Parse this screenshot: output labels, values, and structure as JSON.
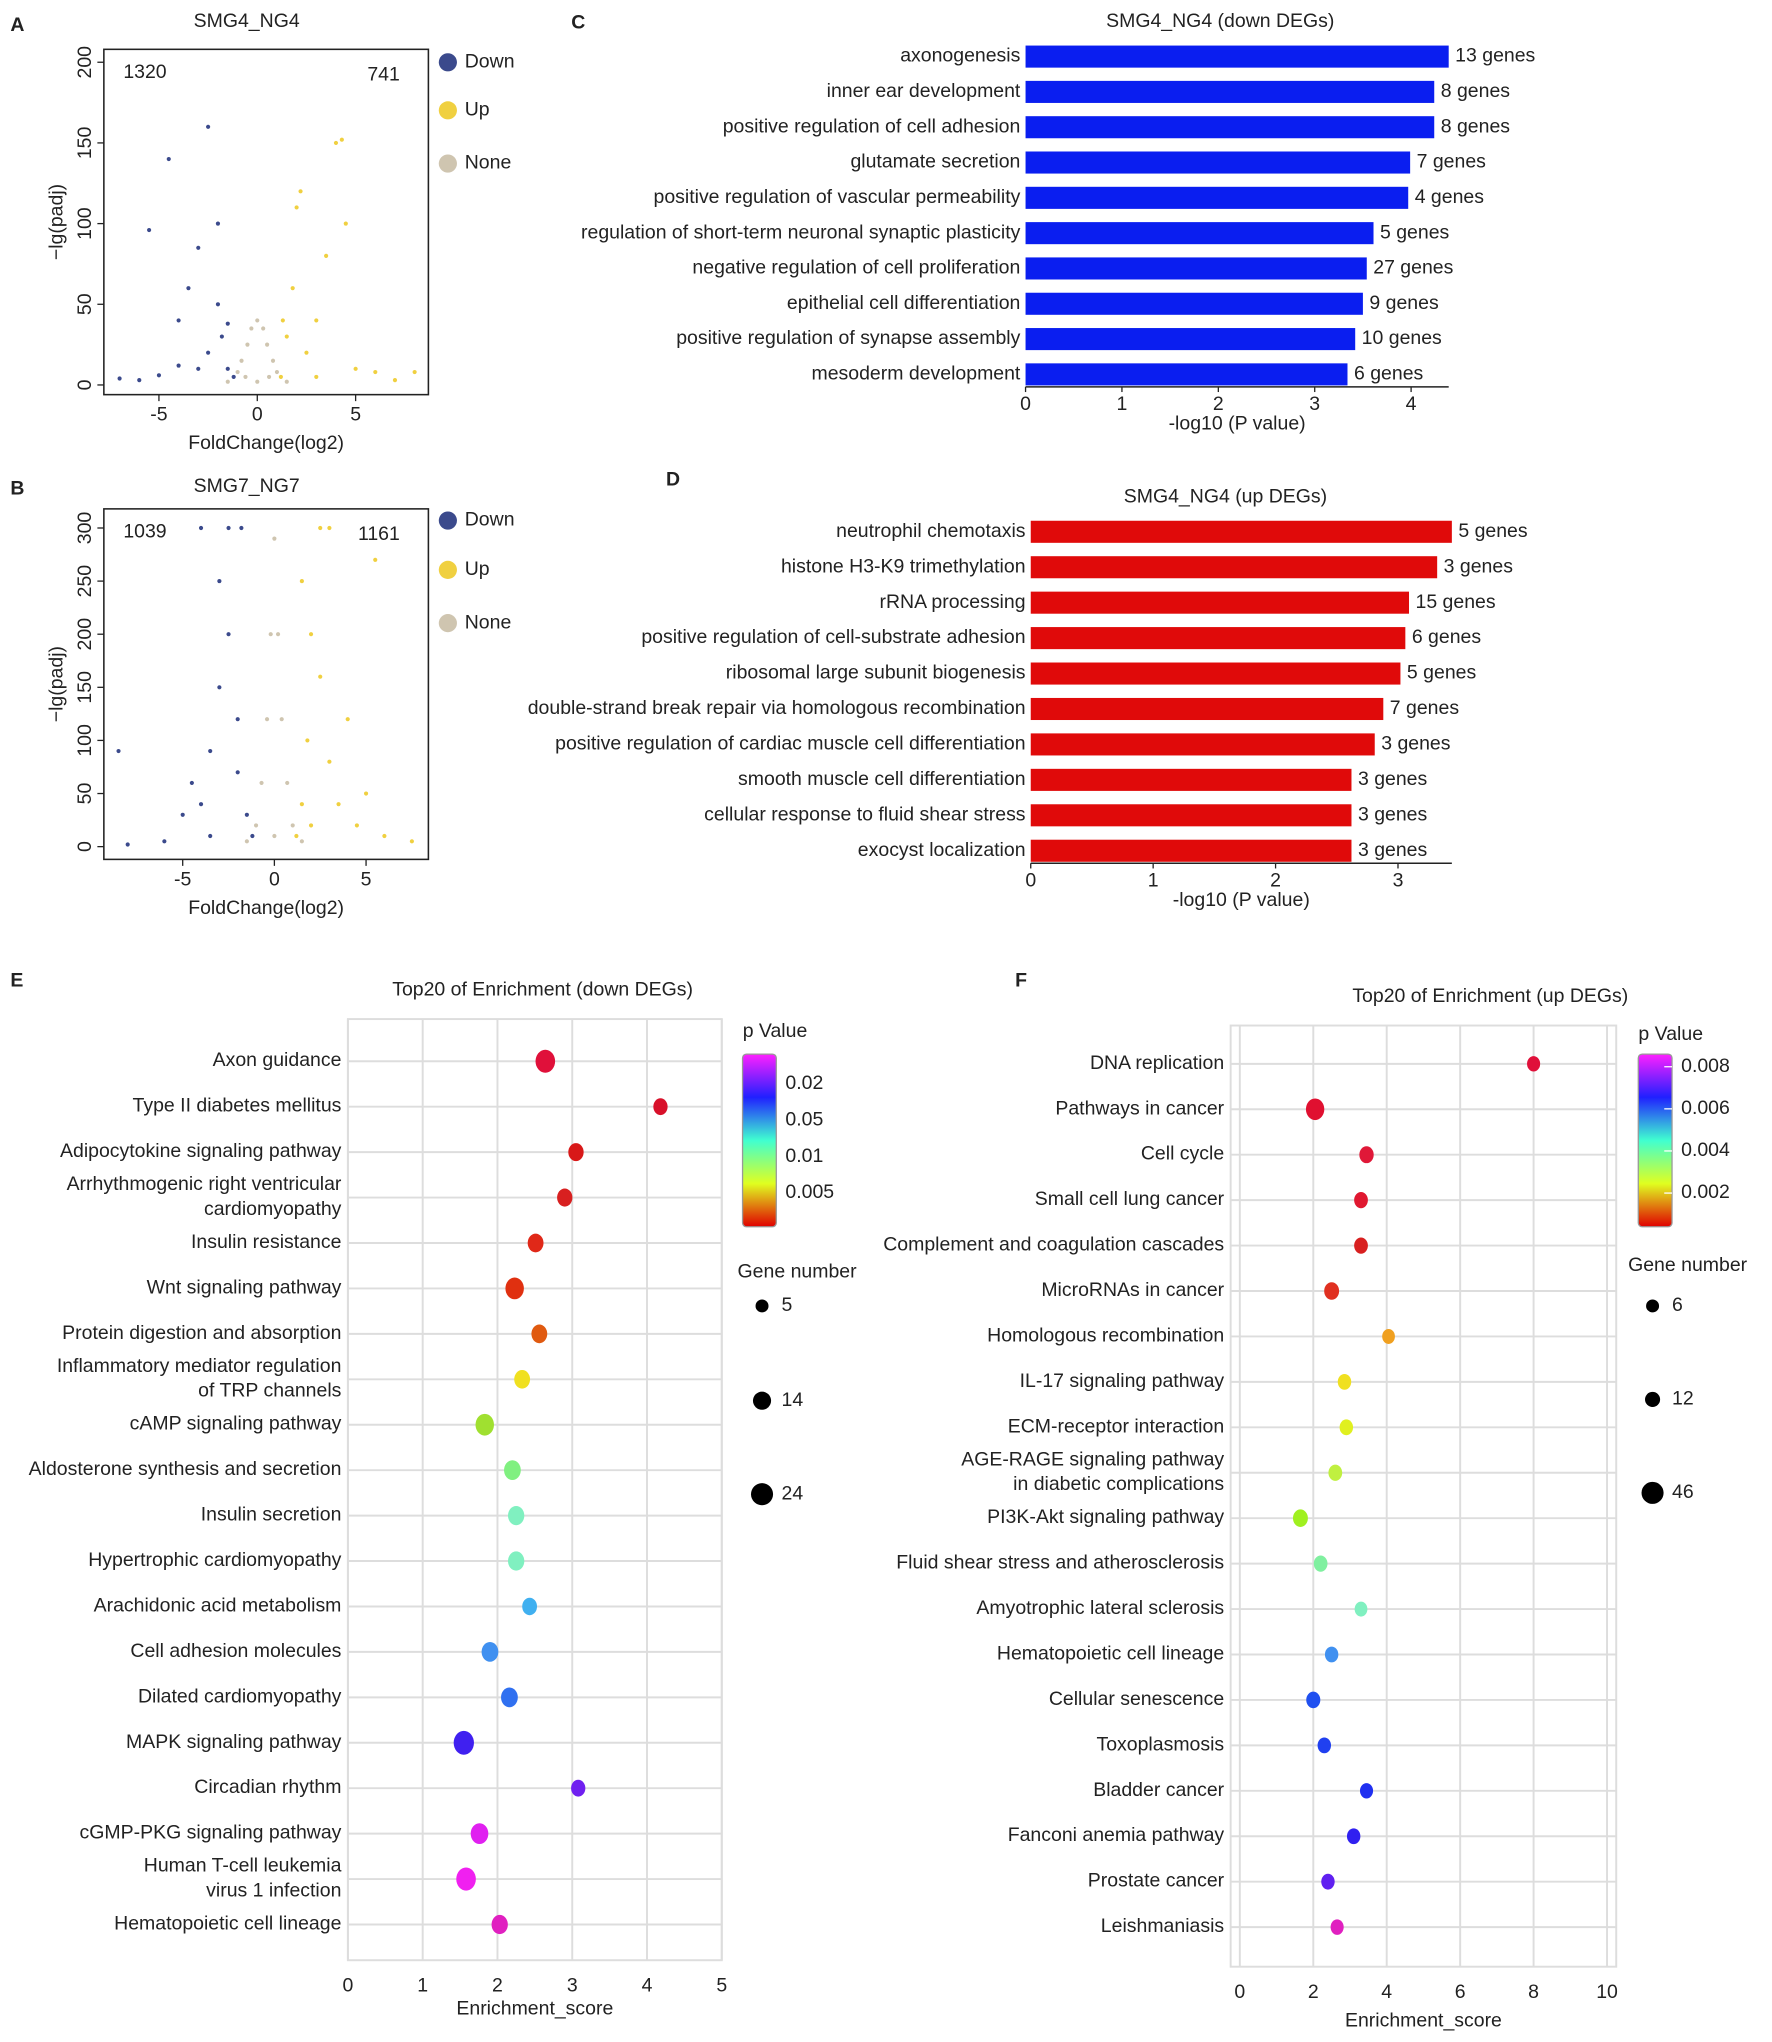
{
  "chart_data": [
    {
      "type": "scatter",
      "panel": "A",
      "title": "SMG4_NG4",
      "x_label": "FoldChange(log2)",
      "y_label": "−lg(padj)",
      "annotations": [
        "1320",
        "741"
      ],
      "xlim": [
        -7.8,
        8.7
      ],
      "ylim": [
        -6,
        208
      ],
      "xticks": [
        -5,
        0,
        5
      ],
      "yticks": [
        0,
        50,
        100,
        150,
        200
      ],
      "series": [
        {
          "name": "Down",
          "color": "#3b4a8c",
          "x": [
            -7,
            -6,
            -5.5,
            -4.5,
            -4,
            -3.5,
            -3,
            -2.5,
            -2.5,
            -2,
            -1.8,
            -1.5,
            -1.2,
            -3,
            -2,
            -1.5,
            -4,
            -5
          ],
          "y": [
            4,
            3,
            96,
            140,
            40,
            60,
            85,
            160,
            20,
            50,
            30,
            10,
            5,
            10,
            100,
            38,
            12,
            6
          ]
        },
        {
          "name": "Up",
          "color": "#f0d040",
          "x": [
            1.2,
            1.5,
            1.8,
            2,
            2.5,
            3,
            3.5,
            4,
            4.3,
            4.5,
            5,
            6,
            7,
            2.2,
            1.3,
            3,
            8
          ],
          "y": [
            5,
            30,
            60,
            110,
            20,
            40,
            80,
            150,
            152,
            100,
            10,
            8,
            3,
            120,
            40,
            5,
            8
          ]
        },
        {
          "name": "None",
          "color": "#cfc5b0",
          "x": [
            -1.5,
            -1,
            -0.8,
            -0.5,
            -0.3,
            0,
            0.3,
            0.5,
            0.8,
            1,
            1.5,
            0,
            -0.6,
            0.6
          ],
          "y": [
            2,
            8,
            15,
            25,
            35,
            40,
            35,
            25,
            15,
            8,
            2,
            2,
            5,
            5
          ]
        }
      ]
    },
    {
      "type": "scatter",
      "panel": "B",
      "title": "SMG7_NG7",
      "x_label": "FoldChange(log2)",
      "y_label": "−lg(padj)",
      "annotations": [
        "1039",
        "1161"
      ],
      "xlim": [
        -9.3,
        8.4
      ],
      "ylim": [
        -12,
        318
      ],
      "xticks": [
        -5,
        0,
        5
      ],
      "yticks": [
        0,
        50,
        100,
        150,
        200,
        250,
        300
      ],
      "series": [
        {
          "name": "Down",
          "color": "#3b4a8c",
          "x": [
            -8,
            -8.5,
            -6,
            -5,
            -4.5,
            -4,
            -3.5,
            -3,
            -3,
            -2.5,
            -2.5,
            -2,
            -2,
            -1.5,
            -1.2,
            -4,
            -1.8,
            -3.5
          ],
          "y": [
            2,
            90,
            5,
            30,
            60,
            40,
            90,
            150,
            250,
            300,
            200,
            120,
            70,
            30,
            10,
            300,
            300,
            10
          ]
        },
        {
          "name": "Up",
          "color": "#f0d040",
          "x": [
            1.2,
            1.5,
            1.8,
            2,
            2.5,
            2.5,
            3,
            3,
            3.5,
            4,
            4.5,
            5,
            6,
            7.5,
            1.5,
            5.5,
            2
          ],
          "y": [
            10,
            40,
            100,
            200,
            160,
            300,
            80,
            300,
            40,
            120,
            20,
            50,
            10,
            5,
            250,
            270,
            20
          ]
        },
        {
          "name": "None",
          "color": "#cfc5b0",
          "x": [
            -1.5,
            -1,
            -0.7,
            -0.4,
            -0.2,
            0,
            0.2,
            0.4,
            0.7,
            1,
            1.5,
            0
          ],
          "y": [
            5,
            20,
            60,
            120,
            200,
            290,
            200,
            120,
            60,
            20,
            5,
            10
          ]
        }
      ]
    },
    {
      "type": "bar",
      "panel": "C",
      "title": "SMG4_NG4 (down DEGs)",
      "x_label": "-log10 (P value)",
      "color": "#0a1ef0",
      "categories": [
        "axonogenesis",
        "inner ear development",
        "positive regulation of cell adhesion",
        "glutamate secretion",
        "positive regulation of vascular permeability",
        "regulation of short-term neuronal synaptic plasticity",
        "negative regulation of cell proliferation",
        "epithelial cell differentiation",
        "positive regulation of synapse assembly",
        "mesoderm development"
      ],
      "values": [
        4.39,
        4.24,
        4.24,
        3.99,
        3.97,
        3.61,
        3.54,
        3.5,
        3.42,
        3.34
      ],
      "gene_labels": [
        "13 genes",
        "8 genes",
        "8 genes",
        "7 genes",
        "4 genes",
        "5 genes",
        "27 genes",
        "9 genes",
        "10 genes",
        "6 genes"
      ],
      "xlim": [
        0,
        4.39
      ],
      "xticks": [
        0,
        1,
        2,
        3,
        4
      ]
    },
    {
      "type": "bar",
      "panel": "D",
      "title": "SMG4_NG4 (up DEGs)",
      "x_label": "-log10 (P value)",
      "color": "#e00a0a",
      "categories": [
        "neutrophil chemotaxis",
        "histone H3-K9 trimethylation",
        "rRNA processing",
        "positive regulation of cell-substrate adhesion",
        "ribosomal large subunit biogenesis",
        "double-strand break repair via homologous recombination",
        "positive regulation of cardiac muscle cell differentiation",
        "smooth muscle cell differentiation",
        "cellular response to fluid shear stress",
        "exocyst localization"
      ],
      "values": [
        3.44,
        3.32,
        3.09,
        3.06,
        3.02,
        2.88,
        2.81,
        2.62,
        2.62,
        2.62
      ],
      "gene_labels": [
        "5 genes",
        "3 genes",
        "15 genes",
        "6 genes",
        "5 genes",
        "7 genes",
        "3 genes",
        "3 genes",
        "3 genes",
        "3 genes"
      ],
      "xlim": [
        0,
        3.44
      ],
      "xticks": [
        0,
        1,
        2,
        3
      ]
    },
    {
      "type": "dot",
      "panel": "E",
      "title": "Top20 of Enrichment (down DEGs)",
      "x_label": "Enrichment_score",
      "categories": [
        "Axon guidance",
        "Type II diabetes mellitus",
        "Adipocytokine signaling pathway",
        "Arrhythmogenic right ventricular\ncardiomyopathy",
        "Insulin resistance",
        "Wnt signaling pathway",
        "Protein digestion and absorption",
        "Inflammatory mediator regulation\nof TRP channels",
        "cAMP signaling pathway",
        "Aldosterone synthesis and secretion",
        "Insulin secretion",
        "Hypertrophic cardiomyopathy",
        "Arachidonic acid metabolism",
        "Cell adhesion molecules",
        "Dilated cardiomyopathy",
        "MAPK signaling pathway",
        "Circadian rhythm",
        "cGMP-PKG signaling pathway",
        "Human T-cell leukemia\nvirus 1 infection",
        "Hematopoietic cell lineage"
      ],
      "values": [
        2.64,
        4.18,
        3.05,
        2.9,
        2.51,
        2.23,
        2.56,
        2.33,
        1.83,
        2.2,
        2.25,
        2.25,
        2.43,
        1.9,
        2.16,
        1.55,
        3.08,
        1.76,
        1.58,
        2.03
      ],
      "sizes": [
        20,
        8,
        10,
        10,
        11,
        17,
        11,
        11,
        17,
        13,
        12,
        12,
        9,
        13,
        13,
        22,
        8,
        15,
        20,
        12
      ],
      "colors": [
        "#e0103a",
        "#d8102a",
        "#d81818",
        "#d82020",
        "#e02818",
        "#e03010",
        "#e05a10",
        "#f0e020",
        "#a0e030",
        "#80f080",
        "#80f0c0",
        "#80f0c0",
        "#40b0f0",
        "#4090f0",
        "#3070f0",
        "#4020f0",
        "#7020f0",
        "#e020f0",
        "#f020f0",
        "#e020c0"
      ],
      "xlim": [
        0,
        5
      ],
      "xticks": [
        0,
        1,
        2,
        3,
        4,
        5
      ],
      "colorbar_title": "p Value",
      "colorbar_labels": [
        "0.02",
        "0.05",
        "0.01",
        "0.005"
      ],
      "size_title": "Gene number",
      "size_legend": [
        5,
        14,
        24
      ]
    },
    {
      "type": "dot",
      "panel": "F",
      "title": "Top20 of Enrichment (up DEGs)",
      "x_label": "Enrichment_score",
      "categories": [
        "DNA replication",
        "Pathways in cancer",
        "Cell cycle",
        "Small cell lung cancer",
        "Complement and coagulation cascades",
        "MicroRNAs in cancer",
        "Homologous recombination",
        "IL-17 signaling pathway",
        "ECM-receptor interaction",
        "AGE-RAGE signaling pathway\nin diabetic complications",
        "PI3K-Akt signaling pathway",
        "Fluid shear stress and atherosclerosis",
        "Amyotrophic lateral sclerosis",
        "Hematopoietic cell lineage",
        "Cellular senescence",
        "Toxoplasmosis",
        "Bladder cancer",
        "Fanconi anemia pathway",
        "Prostate cancer",
        "Leishmaniasis"
      ],
      "values": [
        8.0,
        2.05,
        3.45,
        3.3,
        3.3,
        2.5,
        4.05,
        2.85,
        2.9,
        2.6,
        1.65,
        2.2,
        3.3,
        2.5,
        2.0,
        2.3,
        3.45,
        3.1,
        2.4,
        2.65
      ],
      "sizes": [
        8,
        30,
        12,
        10,
        10,
        14,
        7,
        9,
        9,
        10,
        14,
        10,
        7,
        9,
        11,
        9,
        8,
        9,
        9,
        8
      ],
      "colors": [
        "#e0103a",
        "#e01030",
        "#e01838",
        "#e01830",
        "#d82020",
        "#e03020",
        "#f0a020",
        "#f0e020",
        "#e0f020",
        "#c0f040",
        "#a0f020",
        "#80f0a0",
        "#80f0c0",
        "#4090f0",
        "#2050f0",
        "#2040f0",
        "#2030f0",
        "#3020f0",
        "#6020f0",
        "#e020c0"
      ],
      "xlim": [
        -0.25,
        10.25
      ],
      "xticks": [
        0,
        2,
        4,
        6,
        8,
        10
      ],
      "colorbar_title": "p Value",
      "colorbar_ticks": [
        0.008,
        0.006,
        0.004,
        0.002
      ],
      "colorbar_lim": [
        0.0004,
        0.0086
      ],
      "size_title": "Gene number",
      "size_legend": [
        6,
        12,
        46
      ]
    }
  ]
}
